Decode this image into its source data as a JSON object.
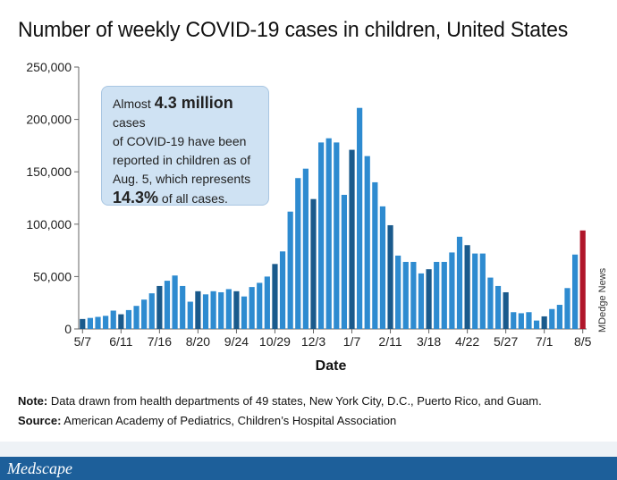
{
  "title": "Number of weekly COVID-19 cases in children, United States",
  "callout": {
    "line1_pre": "Almost ",
    "line1_bold": "4.3 million",
    "line1_post": " cases",
    "line2": "of COVID-19 have been",
    "line3": "reported in children as of",
    "line4": "Aug. 5, which represents",
    "line5_bold": "14.3%",
    "line5_post": " of all cases."
  },
  "side_credit": "MDedge News",
  "notes": {
    "note_label": "Note:",
    "note_text": " Data drawn from health departments of 49 states, New York City, D.C., Puerto Rico, and Guam.",
    "source_label": "Source:",
    "source_text": " American Academy of Pediatrics, Children’s Hospital Association"
  },
  "footer": {
    "logo": "Medscape"
  },
  "colors": {
    "bar": "#2e8bd0",
    "bar_dark": "#1a5a8c",
    "bar_latest": "#b0162a",
    "callout_bg": "#cfe2f3"
  },
  "chart_data": {
    "type": "bar",
    "title": "Number of weekly COVID-19 cases in children, United States",
    "xlabel": "Date",
    "ylabel": "",
    "ylim": [
      0,
      250000
    ],
    "yticks": [
      "0",
      "50,000",
      "100,000",
      "150,000",
      "200,000",
      "250,000"
    ],
    "xticks": [
      "5/7",
      "6/11",
      "7/16",
      "8/20",
      "9/24",
      "10/29",
      "12/3",
      "1/7",
      "2/11",
      "3/18",
      "4/22",
      "5/27",
      "7/1",
      "8/5"
    ],
    "grid": false,
    "values": [
      9500,
      10500,
      11500,
      12500,
      17500,
      14000,
      18000,
      22000,
      28000,
      34000,
      41000,
      46000,
      51000,
      41000,
      26000,
      36000,
      33000,
      36000,
      35000,
      38000,
      36000,
      31000,
      40000,
      44000,
      50000,
      62000,
      74000,
      112000,
      144000,
      153000,
      124000,
      178000,
      182000,
      178000,
      128000,
      171000,
      211000,
      165000,
      140000,
      117000,
      99000,
      70000,
      64000,
      64000,
      53000,
      57000,
      64000,
      64000,
      73000,
      88000,
      80000,
      72000,
      72000,
      49000,
      41000,
      35000,
      16000,
      15000,
      16000,
      8000,
      12000,
      19000,
      23000,
      39000,
      71000,
      94000
    ],
    "dark_bars": [
      0,
      5,
      10,
      15,
      20,
      25,
      30,
      35,
      40,
      45,
      50,
      55,
      60
    ],
    "highlight_bar": 65
  }
}
